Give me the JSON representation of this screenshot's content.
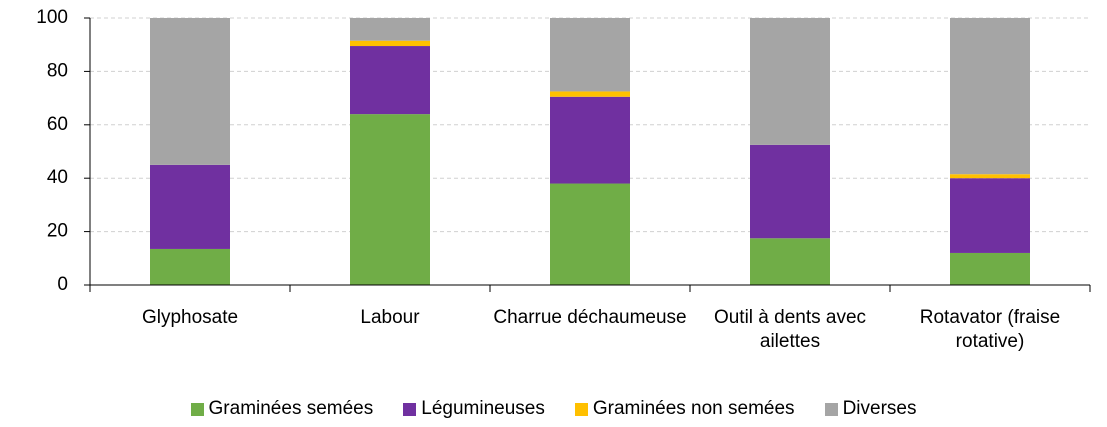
{
  "chart_data": {
    "type": "stacked_bar",
    "categories": [
      "Glyphosate",
      "Labour",
      "Charrue déchaumeuse",
      "Outil à dents avec ailettes",
      "Rotavator (fraise rotative)"
    ],
    "series": [
      {
        "name": "Graminées semées",
        "color": "#70ad47",
        "values": [
          13.5,
          64,
          38,
          17.5,
          12
        ]
      },
      {
        "name": "Légumineuses",
        "color": "#7030a0",
        "values": [
          31.5,
          25.5,
          32.5,
          35,
          28
        ]
      },
      {
        "name": "Graminées non semées",
        "color": "#ffc000",
        "values": [
          0,
          2,
          2,
          0,
          1.5
        ]
      },
      {
        "name": "Diverses",
        "color": "#a5a5a5",
        "values": [
          55,
          8.5,
          27.5,
          47.5,
          58.5
        ]
      }
    ],
    "ylim": [
      0,
      100
    ],
    "yticks": [
      0,
      20,
      40,
      60,
      80,
      100
    ],
    "grid": true,
    "legend": "bottom"
  }
}
